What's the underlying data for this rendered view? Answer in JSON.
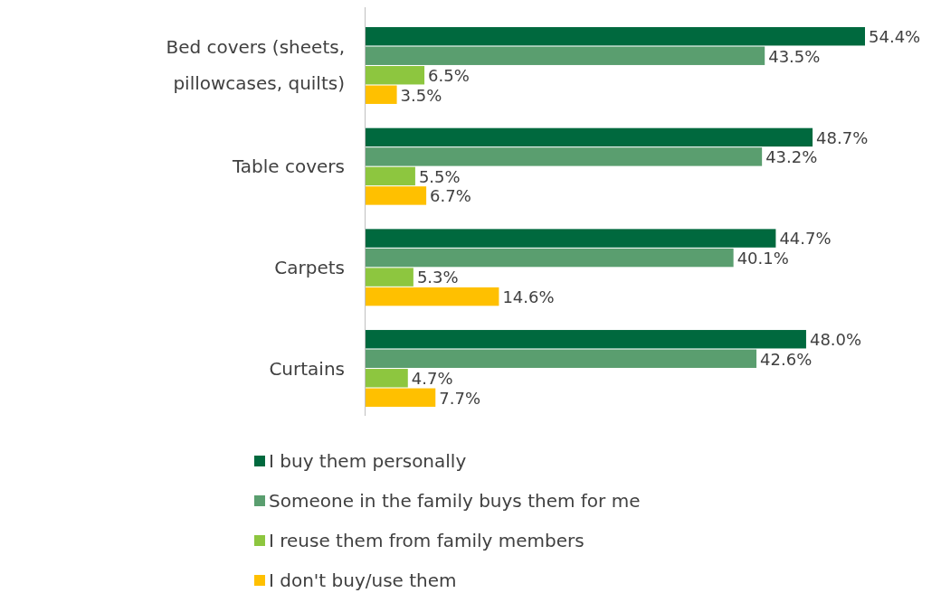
{
  "chart_data": {
    "type": "bar",
    "orientation": "horizontal",
    "categories": [
      "Bed covers (sheets, pillowcases, quilts)",
      "Table covers",
      "Carpets",
      "Curtains"
    ],
    "legend": "bottom",
    "series": [
      {
        "name": "I buy them personally",
        "color": "#00693e",
        "values": [
          54.4,
          48.7,
          44.7,
          48.0
        ],
        "value_labels": [
          "54.4%",
          "48.7%",
          "44.7%",
          "48.0%"
        ]
      },
      {
        "name": "Someone in the family buys them for me",
        "color": "#5a9e6f",
        "values": [
          43.5,
          43.2,
          40.1,
          42.6
        ],
        "value_labels": [
          "43.5%",
          "43.2%",
          "40.1%",
          "42.6%"
        ]
      },
      {
        "name": "I reuse them from family members",
        "color": "#8dc63f",
        "values": [
          6.5,
          5.5,
          5.3,
          4.7
        ],
        "value_labels": [
          "6.5%",
          "5.5%",
          "5.3%",
          "4.7%"
        ]
      },
      {
        "name": "I don't buy/use them",
        "color": "#ffc000",
        "values": [
          3.5,
          6.7,
          14.6,
          7.7
        ],
        "value_labels": [
          "3.5%",
          "6.7%",
          "14.6%",
          "7.7%"
        ]
      }
    ]
  }
}
